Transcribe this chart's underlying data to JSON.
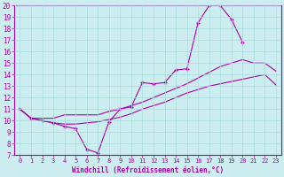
{
  "xlabel": "Windchill (Refroidissement éolien,°C)",
  "bg_color": "#cceef0",
  "line_color": "#aa00aa",
  "grid_color": "#aadddd",
  "xlim": [
    -0.5,
    23.5
  ],
  "ylim": [
    7,
    20
  ],
  "yticks": [
    7,
    8,
    9,
    10,
    11,
    12,
    13,
    14,
    15,
    16,
    17,
    18,
    19,
    20
  ],
  "xticks": [
    0,
    1,
    2,
    3,
    4,
    5,
    6,
    7,
    8,
    9,
    10,
    11,
    12,
    13,
    14,
    15,
    16,
    17,
    18,
    19,
    20,
    21,
    22,
    23
  ],
  "series": [
    {
      "x": [
        0,
        1,
        2,
        3,
        4,
        5,
        6,
        7,
        8,
        9,
        10,
        11,
        12,
        13,
        14,
        15,
        16,
        17,
        18,
        19,
        20,
        21,
        22,
        23
      ],
      "y": [
        11,
        10.2,
        10.0,
        9.8,
        9.5,
        9.3,
        7.5,
        7.2,
        9.9,
        11.0,
        11.2,
        13.3,
        13.2,
        13.3,
        14.4,
        14.5,
        18.5,
        20.0,
        20.0,
        18.8,
        16.8,
        null,
        null,
        null
      ],
      "has_markers": true
    },
    {
      "x": [
        0,
        1,
        2,
        3,
        4,
        5,
        6,
        7,
        8,
        9,
        10,
        11,
        12,
        13,
        14,
        15,
        16,
        17,
        18,
        19,
        20,
        21,
        22,
        23
      ],
      "y": [
        11,
        10.2,
        10.2,
        10.2,
        10.5,
        10.5,
        10.5,
        10.5,
        10.8,
        11.0,
        11.3,
        11.6,
        12.0,
        12.4,
        12.8,
        13.2,
        13.7,
        14.2,
        14.7,
        15.0,
        15.3,
        15.0,
        15.0,
        14.3
      ],
      "has_markers": false
    },
    {
      "x": [
        0,
        1,
        2,
        3,
        4,
        5,
        6,
        7,
        8,
        9,
        10,
        11,
        12,
        13,
        14,
        15,
        16,
        17,
        18,
        19,
        20,
        21,
        22,
        23
      ],
      "y": [
        11,
        10.2,
        10.0,
        9.8,
        9.7,
        9.7,
        9.8,
        9.9,
        10.1,
        10.3,
        10.6,
        11.0,
        11.3,
        11.6,
        12.0,
        12.4,
        12.7,
        13.0,
        13.2,
        13.4,
        13.6,
        13.8,
        14.0,
        13.1
      ],
      "has_markers": false
    }
  ]
}
